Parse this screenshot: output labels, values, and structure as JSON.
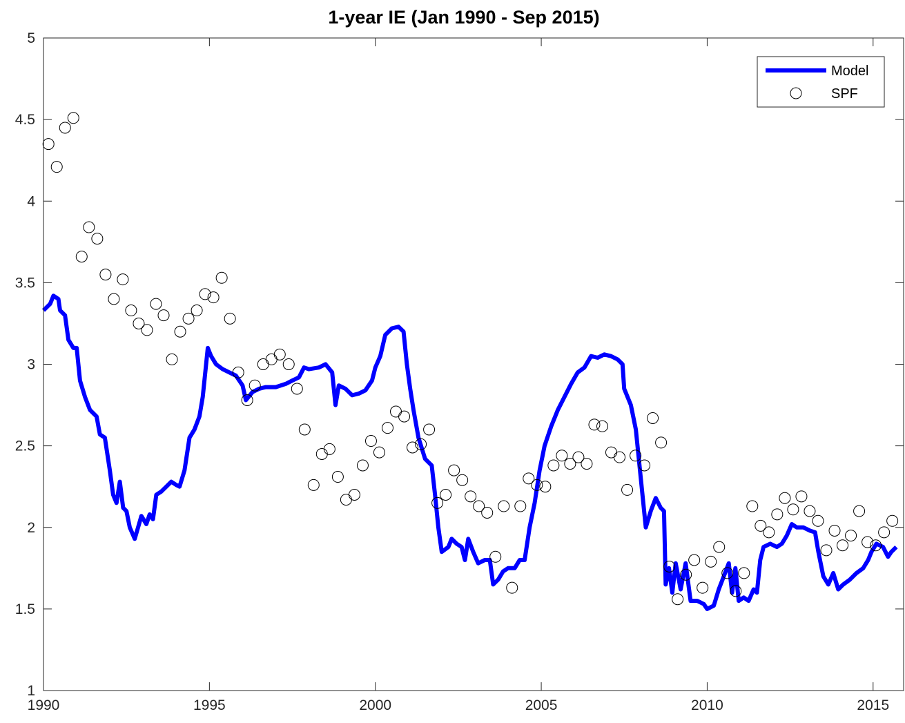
{
  "chart_data": {
    "type": "line",
    "title": "1-year IE (Jan 1990 - Sep 2015)",
    "xlim": [
      1990,
      2015.92
    ],
    "ylim": [
      1,
      5
    ],
    "xticks": [
      1990,
      1995,
      2000,
      2005,
      2010,
      2015
    ],
    "yticks": [
      1,
      1.5,
      2,
      2.5,
      3,
      3.5,
      4,
      4.5,
      5
    ],
    "legend": "upper right",
    "series": [
      {
        "name": "Model",
        "type": "line",
        "color": "#0000ff",
        "x": [
          1990.0,
          1990.2,
          1990.3,
          1990.45,
          1990.5,
          1990.65,
          1990.75,
          1990.9,
          1991.0,
          1991.1,
          1991.25,
          1991.4,
          1991.5,
          1991.6,
          1991.7,
          1991.85,
          1992.0,
          1992.1,
          1992.2,
          1992.3,
          1992.4,
          1992.5,
          1992.6,
          1992.75,
          1992.85,
          1992.95,
          1993.1,
          1993.2,
          1993.3,
          1993.4,
          1993.55,
          1993.7,
          1993.85,
          1994.0,
          1994.1,
          1994.25,
          1994.4,
          1994.55,
          1994.7,
          1994.8,
          1994.95,
          1995.05,
          1995.2,
          1995.4,
          1995.6,
          1995.8,
          1996.0,
          1996.1,
          1996.3,
          1996.5,
          1996.7,
          1997.0,
          1997.3,
          1997.5,
          1997.7,
          1997.85,
          1998.0,
          1998.3,
          1998.5,
          1998.7,
          1998.8,
          1998.9,
          1999.1,
          1999.3,
          1999.5,
          1999.7,
          1999.9,
          2000.0,
          2000.15,
          2000.3,
          2000.5,
          2000.7,
          2000.85,
          2000.95,
          2001.05,
          2001.15,
          2001.3,
          2001.5,
          2001.7,
          2001.8,
          2001.9,
          2002.0,
          2002.2,
          2002.3,
          2002.45,
          2002.6,
          2002.7,
          2002.8,
          2002.95,
          2003.1,
          2003.3,
          2003.45,
          2003.55,
          2003.7,
          2003.85,
          2004.0,
          2004.2,
          2004.35,
          2004.5,
          2004.65,
          2004.8,
          2004.95,
          2005.1,
          2005.3,
          2005.5,
          2005.7,
          2005.9,
          2006.1,
          2006.3,
          2006.5,
          2006.7,
          2006.9,
          2007.1,
          2007.3,
          2007.45,
          2007.5,
          2007.7,
          2007.85,
          2008.0,
          2008.15,
          2008.3,
          2008.45,
          2008.6,
          2008.7,
          2008.75,
          2008.85,
          2008.95,
          2009.05,
          2009.2,
          2009.35,
          2009.5,
          2009.7,
          2009.9,
          2010.0,
          2010.2,
          2010.35,
          2010.5,
          2010.65,
          2010.75,
          2010.85,
          2010.95,
          2011.1,
          2011.25,
          2011.4,
          2011.5,
          2011.6,
          2011.7,
          2011.9,
          2012.1,
          2012.25,
          2012.4,
          2012.55,
          2012.7,
          2012.9,
          2013.1,
          2013.25,
          2013.35,
          2013.5,
          2013.65,
          2013.8,
          2013.95,
          2014.1,
          2014.3,
          2014.5,
          2014.7,
          2014.85,
          2014.95,
          2015.1,
          2015.3,
          2015.45,
          2015.55,
          2015.7
        ],
        "values": [
          3.33,
          3.37,
          3.42,
          3.4,
          3.33,
          3.3,
          3.15,
          3.1,
          3.1,
          2.9,
          2.8,
          2.72,
          2.7,
          2.68,
          2.57,
          2.55,
          2.35,
          2.2,
          2.15,
          2.28,
          2.12,
          2.1,
          2.0,
          1.93,
          2.0,
          2.07,
          2.02,
          2.08,
          2.05,
          2.2,
          2.22,
          2.25,
          2.28,
          2.26,
          2.25,
          2.35,
          2.55,
          2.6,
          2.68,
          2.8,
          3.1,
          3.05,
          3.0,
          2.97,
          2.95,
          2.93,
          2.87,
          2.78,
          2.83,
          2.85,
          2.86,
          2.86,
          2.88,
          2.9,
          2.92,
          2.98,
          2.97,
          2.98,
          3.0,
          2.95,
          2.75,
          2.87,
          2.85,
          2.81,
          2.82,
          2.84,
          2.9,
          2.98,
          3.05,
          3.18,
          3.22,
          3.23,
          3.2,
          3.0,
          2.85,
          2.72,
          2.55,
          2.42,
          2.38,
          2.2,
          2.0,
          1.85,
          1.88,
          1.93,
          1.9,
          1.88,
          1.8,
          1.93,
          1.85,
          1.78,
          1.8,
          1.8,
          1.65,
          1.68,
          1.73,
          1.75,
          1.75,
          1.8,
          1.8,
          2.0,
          2.15,
          2.35,
          2.5,
          2.62,
          2.72,
          2.8,
          2.88,
          2.95,
          2.98,
          3.05,
          3.04,
          3.06,
          3.05,
          3.03,
          3.0,
          2.85,
          2.75,
          2.6,
          2.3,
          2.0,
          2.1,
          2.18,
          2.12,
          2.1,
          1.65,
          1.75,
          1.6,
          1.78,
          1.62,
          1.78,
          1.55,
          1.55,
          1.53,
          1.5,
          1.52,
          1.62,
          1.7,
          1.78,
          1.6,
          1.75,
          1.55,
          1.57,
          1.55,
          1.62,
          1.6,
          1.8,
          1.88,
          1.9,
          1.88,
          1.9,
          1.95,
          2.02,
          2.0,
          2.0,
          1.98,
          1.97,
          1.85,
          1.7,
          1.65,
          1.72,
          1.62,
          1.65,
          1.68,
          1.72,
          1.75,
          1.8,
          1.85,
          1.9,
          1.88,
          1.82,
          1.85,
          1.88
        ]
      },
      {
        "name": "SPF",
        "type": "scatter",
        "color": "#000000",
        "x": [
          1990.15,
          1990.4,
          1990.65,
          1990.9,
          1991.15,
          1991.37,
          1991.62,
          1991.87,
          1992.12,
          1992.39,
          1992.64,
          1992.87,
          1993.12,
          1993.39,
          1993.62,
          1993.87,
          1994.12,
          1994.37,
          1994.62,
          1994.87,
          1995.12,
          1995.37,
          1995.62,
          1995.87,
          1996.14,
          1996.37,
          1996.62,
          1996.87,
          1997.12,
          1997.39,
          1997.64,
          1997.87,
          1998.14,
          1998.39,
          1998.62,
          1998.87,
          1999.12,
          1999.37,
          1999.62,
          1999.87,
          2000.12,
          2000.37,
          2000.62,
          2000.87,
          2001.12,
          2001.37,
          2001.62,
          2001.87,
          2002.12,
          2002.37,
          2002.62,
          2002.87,
          2003.12,
          2003.37,
          2003.62,
          2003.87,
          2004.12,
          2004.37,
          2004.62,
          2004.87,
          2005.12,
          2005.37,
          2005.62,
          2005.87,
          2006.12,
          2006.37,
          2006.6,
          2006.84,
          2007.11,
          2007.36,
          2007.59,
          2007.84,
          2008.11,
          2008.36,
          2008.61,
          2008.86,
          2009.11,
          2009.36,
          2009.61,
          2009.86,
          2010.11,
          2010.36,
          2010.61,
          2010.86,
          2011.11,
          2011.36,
          2011.61,
          2011.86,
          2012.11,
          2012.34,
          2012.59,
          2012.84,
          2013.09,
          2013.34,
          2013.59,
          2013.84,
          2014.08,
          2014.33,
          2014.58,
          2014.83,
          2015.08,
          2015.33,
          2015.58
        ],
        "values": [
          4.35,
          4.21,
          4.45,
          4.51,
          3.66,
          3.84,
          3.77,
          3.55,
          3.4,
          3.52,
          3.33,
          3.25,
          3.21,
          3.37,
          3.3,
          3.03,
          3.2,
          3.28,
          3.33,
          3.43,
          3.41,
          3.53,
          3.28,
          2.95,
          2.78,
          2.87,
          3.0,
          3.03,
          3.06,
          3.0,
          2.85,
          2.6,
          2.26,
          2.45,
          2.48,
          2.31,
          2.17,
          2.2,
          2.38,
          2.53,
          2.46,
          2.61,
          2.71,
          2.68,
          2.49,
          2.51,
          2.6,
          2.15,
          2.2,
          2.35,
          2.29,
          2.19,
          2.13,
          2.09,
          1.82,
          2.13,
          1.63,
          2.13,
          2.3,
          2.26,
          2.25,
          2.38,
          2.44,
          2.39,
          2.43,
          2.39,
          2.63,
          2.62,
          2.46,
          2.43,
          2.23,
          2.44,
          2.38,
          2.67,
          2.52,
          1.76,
          1.56,
          1.71,
          1.8,
          1.63,
          1.79,
          1.88,
          1.72,
          1.61,
          1.72,
          2.13,
          2.01,
          1.97,
          2.08,
          2.18,
          2.11,
          2.19,
          2.1,
          2.04,
          1.86,
          1.98,
          1.89,
          1.95,
          2.1,
          1.91,
          1.89,
          1.97,
          2.04
        ]
      }
    ]
  }
}
